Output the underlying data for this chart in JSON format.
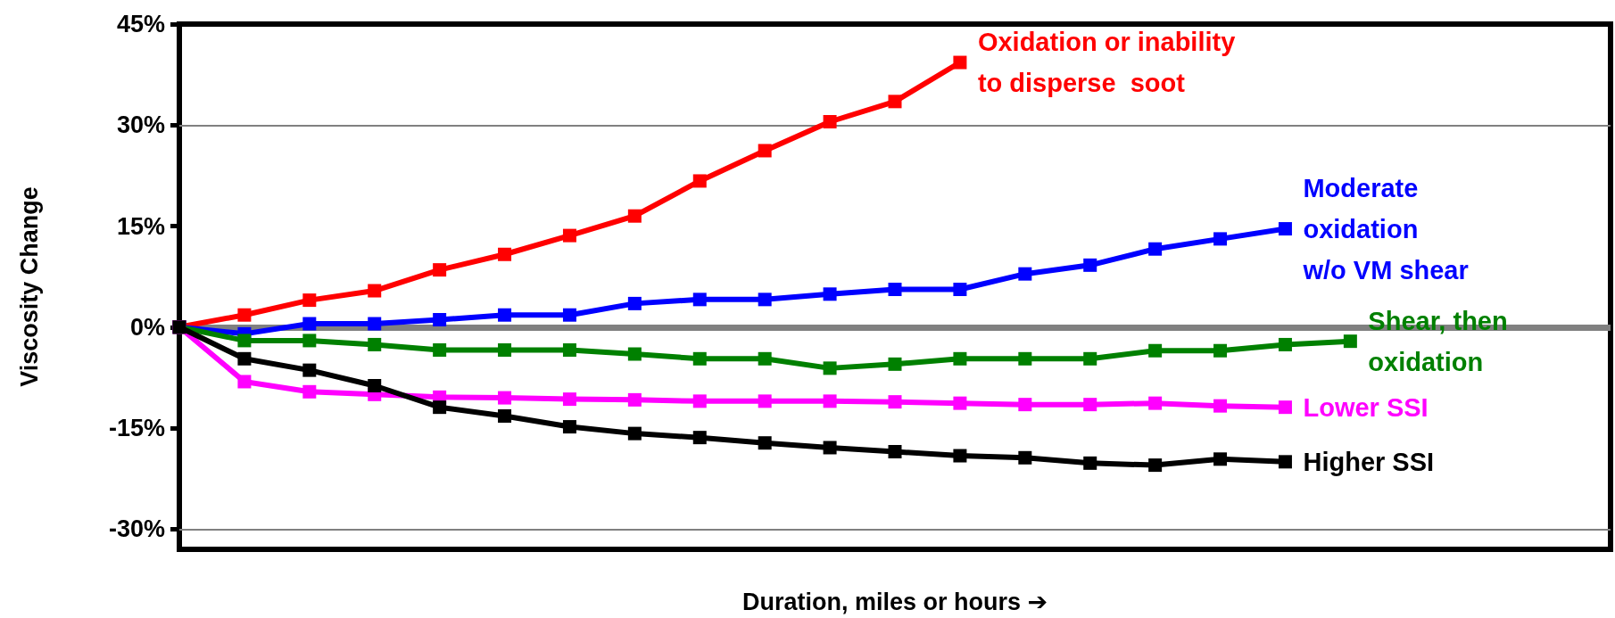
{
  "chart_data": {
    "type": "line",
    "xlabel": "Duration, miles or hours ➔",
    "ylabel": "Viscosity Change",
    "categories": [
      null,
      null,
      null,
      null,
      null,
      null,
      null,
      null,
      null,
      null,
      null,
      null,
      null,
      null,
      null,
      null,
      null,
      null,
      null,
      null,
      null,
      null,
      null
    ],
    "series": [
      {
        "name": "Oxidation or inability\nto disperse  soot",
        "color": "#ff0000",
        "values": [
          0,
          1.8,
          4.0,
          5.4,
          8.5,
          10.8,
          13.6,
          16.5,
          21.7,
          26.2,
          30.5,
          33.5,
          39.3,
          null,
          null,
          null,
          null,
          null,
          null,
          null,
          null,
          null,
          null
        ]
      },
      {
        "name": "Moderate\noxidation\nw/o VM shear",
        "color": "#0000ff",
        "values": [
          0,
          -1.0,
          0.5,
          0.5,
          1.1,
          1.8,
          1.8,
          3.5,
          4.1,
          4.1,
          4.9,
          5.6,
          5.6,
          7.9,
          9.2,
          11.6,
          13.1,
          14.6,
          null,
          null,
          null,
          null,
          null
        ]
      },
      {
        "name": "Shear, then\noxidation",
        "color": "#008000",
        "values": [
          0,
          -2.0,
          -2.0,
          -2.6,
          -3.4,
          -3.4,
          -3.4,
          -4.0,
          -4.7,
          -4.7,
          -6.1,
          -5.5,
          -4.7,
          -4.7,
          -4.7,
          -3.5,
          -3.5,
          -2.6,
          -2.1,
          null,
          null,
          null,
          null
        ]
      },
      {
        "name": "Lower SSI",
        "color": "#ff00ff",
        "values": [
          0,
          -8.1,
          -9.6,
          -10.0,
          -10.4,
          -10.5,
          -10.7,
          -10.8,
          -11.0,
          -11.0,
          -11.0,
          -11.1,
          -11.3,
          -11.5,
          -11.5,
          -11.3,
          -11.7,
          -11.9,
          null,
          null,
          null,
          null,
          null
        ]
      },
      {
        "name": "Higher SSI",
        "color": "#000000",
        "values": [
          0,
          -4.7,
          -6.4,
          -8.7,
          -11.9,
          -13.2,
          -14.8,
          -15.8,
          -16.4,
          -17.2,
          -17.9,
          -18.5,
          -19.1,
          -19.4,
          -20.2,
          -20.5,
          -19.6,
          -20.0,
          null,
          null,
          null,
          null,
          null
        ]
      }
    ],
    "ylim": [
      -33,
      45
    ],
    "yticks": [
      {
        "value": -30,
        "label": "-30%"
      },
      {
        "value": -15,
        "label": "-15%"
      },
      {
        "value": 0,
        "label": "0%"
      },
      {
        "value": 15,
        "label": "15%"
      },
      {
        "value": 30,
        "label": "30%"
      },
      {
        "value": 45,
        "label": "45%"
      }
    ],
    "ref_lines": [
      {
        "axis": "y",
        "value": 0,
        "color": "#808080",
        "line_style": "solid"
      },
      {
        "axis": "y",
        "value": 30,
        "color": "#808080",
        "line_style": "solid"
      },
      {
        "axis": "y",
        "value": -30,
        "color": "#808080",
        "line_style": "solid"
      }
    ],
    "tick_labels": "y",
    "marker": "square",
    "line_style": "solid"
  }
}
